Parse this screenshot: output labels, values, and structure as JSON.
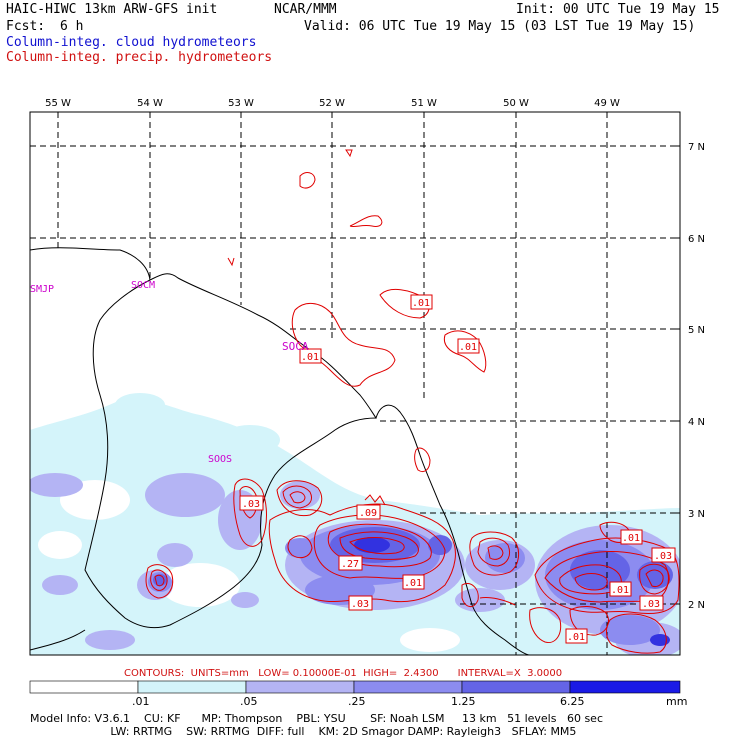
{
  "header": {
    "model": "HAIC-HIWC 13km ARW-GFS init",
    "center": "NCAR/MMM",
    "init": "Init: 00 UTC Tue 19 May 15",
    "fcst_label": "Fcst:",
    "fcst_value": "6 h",
    "valid": "Valid: 06 UTC Tue 19 May 15 (03 LST Tue 19 May 15)",
    "field1": "Column-integ. cloud hydrometeors",
    "field2": "Column-integ. precip. hydrometeors"
  },
  "map": {
    "lon_labels": [
      "55 W",
      "54 W",
      "53 W",
      "52 W",
      "51 W",
      "50 W",
      "49 W"
    ],
    "lat_labels": [
      "7 N",
      "6 N",
      "5 N",
      "4 N",
      "3 N",
      "2 N"
    ],
    "stations": [
      "SMJP",
      "SOCM",
      "SOCA",
      "SOOS"
    ],
    "contour_values": [
      ".01",
      ".01",
      ".01",
      ".03",
      ".09",
      ".27",
      ".01",
      ".03",
      ".01",
      ".03",
      ".01",
      ".03",
      ".01"
    ],
    "colors": {
      "cloud_light": "#d4f4fa",
      "cloud_mid": "#b4b4f4",
      "cloud_strong": "#6464e6",
      "cloud_dark": "#1a1ae6",
      "precip": "#e00000",
      "station": "#cc00cc",
      "coast": "#000000"
    }
  },
  "contours_info": "CONTOURS:  UNITS=mm   LOW= 0.10000E-01  HIGH=  2.4300      INTERVAL=X  3.0000",
  "colorbar": {
    "ticks": [
      ".01",
      ".05",
      ".25",
      "1.25",
      "6.25"
    ],
    "unit": "mm",
    "colors": [
      "#ffffff",
      "#d4f4fa",
      "#b4b4f4",
      "#8c8cf0",
      "#6464e6",
      "#3232e0",
      "#1a1ae6"
    ]
  },
  "footer": {
    "line1": "Model Info: V3.6.1    CU: KF      MP: Thompson    PBL: YSU       SF: Noah LSM     13 km   51 levels   60 sec",
    "line2": "                       LW: RRTMG    SW: RRTMG  DIFF: full    KM: 2D Smagor DAMP: Rayleigh3   SFLAY: MM5"
  }
}
